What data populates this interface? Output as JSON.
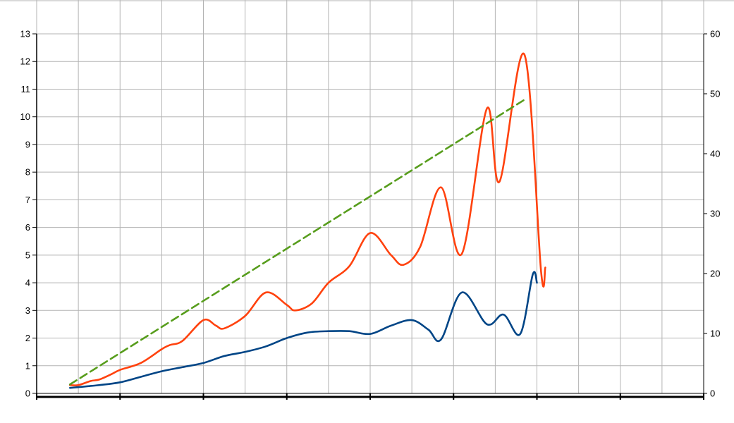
{
  "chart_data": {
    "type": "line",
    "grid": true,
    "legend": "none",
    "y_left": {
      "ticks": [
        "0",
        "1",
        "2",
        "3",
        "4",
        "5",
        "6",
        "7",
        "8",
        "9",
        "10",
        "11",
        "12",
        "13"
      ],
      "range": [
        0,
        13
      ]
    },
    "y_right": {
      "ticks": [
        "0",
        "10",
        "20",
        "30",
        "40",
        "50",
        "60"
      ],
      "range": [
        0,
        60
      ]
    },
    "x": {
      "range": [
        0,
        16
      ],
      "category_count": 16
    },
    "series": [
      {
        "axis": "left",
        "color": "#ff420e",
        "style": "solid",
        "smooth": true,
        "points": [
          [
            0.8,
            0.3
          ],
          [
            1.0,
            0.3
          ],
          [
            1.3,
            0.45
          ],
          [
            1.5,
            0.5
          ],
          [
            1.8,
            0.7
          ],
          [
            2.0,
            0.85
          ],
          [
            2.5,
            1.1
          ],
          [
            3.0,
            1.6
          ],
          [
            3.2,
            1.75
          ],
          [
            3.5,
            1.9
          ],
          [
            4.0,
            2.65
          ],
          [
            4.3,
            2.45
          ],
          [
            4.5,
            2.35
          ],
          [
            5.0,
            2.8
          ],
          [
            5.5,
            3.65
          ],
          [
            6.0,
            3.2
          ],
          [
            6.2,
            3.0
          ],
          [
            6.6,
            3.25
          ],
          [
            7.0,
            4.0
          ],
          [
            7.5,
            4.6
          ],
          [
            8.0,
            5.8
          ],
          [
            8.5,
            5.0
          ],
          [
            8.8,
            4.65
          ],
          [
            9.2,
            5.3
          ],
          [
            9.7,
            7.45
          ],
          [
            10.2,
            5.05
          ],
          [
            10.8,
            10.3
          ],
          [
            11.1,
            7.65
          ],
          [
            11.7,
            12.25
          ],
          [
            12.1,
            4.4
          ],
          [
            12.2,
            4.55
          ]
        ]
      },
      {
        "axis": "left",
        "color": "#004586",
        "style": "solid",
        "smooth": true,
        "points": [
          [
            0.8,
            0.2
          ],
          [
            1.5,
            0.3
          ],
          [
            2.0,
            0.4
          ],
          [
            2.5,
            0.6
          ],
          [
            3.0,
            0.8
          ],
          [
            3.5,
            0.95
          ],
          [
            4.0,
            1.1
          ],
          [
            4.5,
            1.35
          ],
          [
            5.0,
            1.5
          ],
          [
            5.5,
            1.7
          ],
          [
            6.0,
            2.0
          ],
          [
            6.5,
            2.2
          ],
          [
            7.0,
            2.25
          ],
          [
            7.5,
            2.25
          ],
          [
            8.0,
            2.15
          ],
          [
            8.5,
            2.45
          ],
          [
            9.0,
            2.65
          ],
          [
            9.4,
            2.3
          ],
          [
            9.7,
            1.95
          ],
          [
            10.2,
            3.65
          ],
          [
            10.8,
            2.5
          ],
          [
            11.2,
            2.85
          ],
          [
            11.6,
            2.15
          ],
          [
            11.9,
            4.3
          ],
          [
            12.0,
            4.0
          ]
        ]
      },
      {
        "axis": "right",
        "color": "#579d1c",
        "style": "dashed",
        "smooth": false,
        "points": [
          [
            0.8,
            1.5
          ],
          [
            11.7,
            49.0
          ]
        ]
      }
    ]
  }
}
